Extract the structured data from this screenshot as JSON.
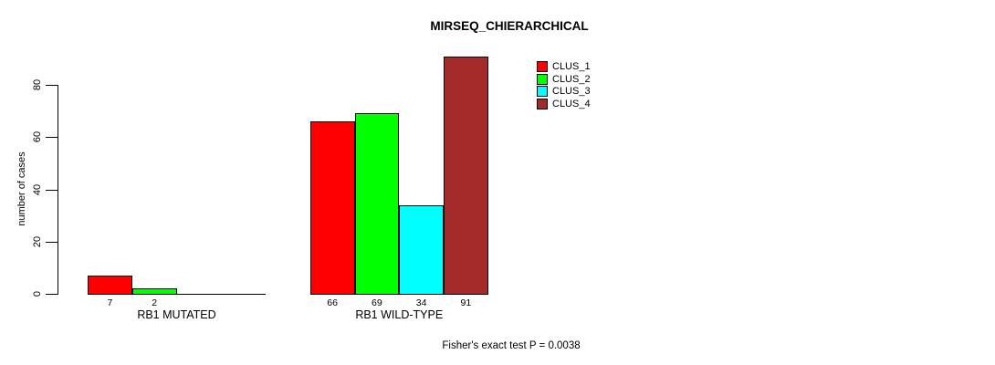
{
  "chart_data": {
    "type": "bar",
    "title": "MIRSEQ_CHIERARCHICAL",
    "xlabel": "",
    "ylabel": "number of cases",
    "ylim": [
      0,
      80
    ],
    "yticks": [
      0,
      20,
      40,
      60,
      80
    ],
    "grid": false,
    "legend_position": "top-right",
    "categories": [
      "RB1 MUTATED",
      "RB1 WILD-TYPE"
    ],
    "series": [
      {
        "name": "CLUS_1",
        "color": "#FF0000",
        "values": [
          7,
          66
        ]
      },
      {
        "name": "CLUS_2",
        "color": "#00FF00",
        "values": [
          2,
          69
        ]
      },
      {
        "name": "CLUS_3",
        "color": "#00FFFF",
        "values": [
          0,
          34
        ]
      },
      {
        "name": "CLUS_4",
        "color": "#A52A2A",
        "values": [
          0,
          91
        ]
      }
    ],
    "bar_value_labels": [
      [
        "7",
        "2",
        "",
        ""
      ],
      [
        "66",
        "69",
        "34",
        "91"
      ]
    ],
    "annotation": "Fisher's exact test P = 0.0038"
  }
}
